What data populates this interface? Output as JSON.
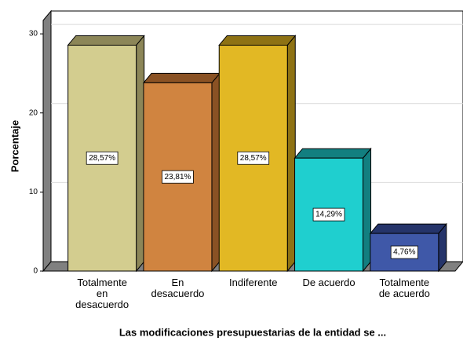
{
  "chart_data": {
    "type": "bar3d",
    "x_label": "Las modificaciones presupuestarias de la entidad se ...",
    "y_label": "Porcentaje",
    "categories": [
      "Totalmente\nen\ndesacuerdo",
      "En\ndesacuerdo",
      "Indiferente",
      "De acuerdo",
      "Totalmente\nde acuerdo"
    ],
    "values": [
      28.57,
      23.81,
      28.57,
      14.29,
      4.76
    ],
    "value_labels": [
      "28,57%",
      "23,81%",
      "28,57%",
      "14,29%",
      "4,76%"
    ],
    "colors": [
      "#d3cd8f",
      "#d08440",
      "#e2b824",
      "#1fcfcf",
      "#3f58a8"
    ],
    "side_colors": [
      "#8c8658",
      "#8a5224",
      "#8e7214",
      "#127f80",
      "#25346a"
    ],
    "ylim": [
      0,
      31.5
    ],
    "yticks": [
      0,
      10,
      20,
      30
    ],
    "grid": true
  }
}
